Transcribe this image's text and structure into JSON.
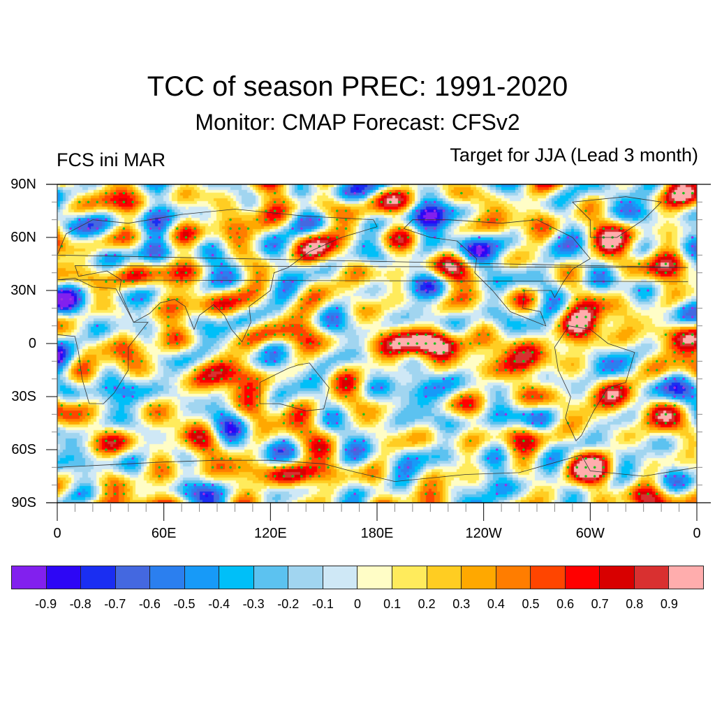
{
  "header": {
    "title": "TCC of season PREC: 1991-2020",
    "subtitle": "Monitor: CMAP   Forecast: CFSv2",
    "left_label": "FCS ini MAR",
    "right_label": "Target for JJA (Lead 3 month)"
  },
  "map": {
    "projection": "cylindrical-equidistant",
    "variable": "TCC (temporal correlation coefficient) of seasonal precipitation",
    "lat_range": [
      -90,
      90
    ],
    "lon_range": [
      0,
      360
    ],
    "y_axis_labels": [
      "90N",
      "60N",
      "30N",
      "0",
      "30S",
      "60S",
      "90S"
    ],
    "y_axis_values": [
      90,
      60,
      30,
      0,
      -30,
      -60,
      -90
    ],
    "x_axis_labels": [
      "0",
      "60E",
      "120E",
      "180E",
      "120W",
      "60W",
      "0"
    ],
    "x_axis_values": [
      0,
      60,
      120,
      180,
      240,
      300,
      360
    ],
    "significance_markers": {
      "positive_color": "#1fbf1f",
      "negative_color": "#9b30e0"
    },
    "notable_features": [
      {
        "name": "equatorial-central-pacific-high-tcc",
        "lat_range": [
          -10,
          8
        ],
        "lon_range": [
          150,
          280
        ],
        "tcc": 0.7
      },
      {
        "name": "antarctic-coast-high-tcc",
        "lat_range": [
          -80,
          -65
        ],
        "lon_range": [
          115,
          155
        ],
        "tcc": 0.6
      },
      {
        "name": "caribbean-northern-south-america-high-tcc",
        "lat_range": [
          -5,
          20
        ],
        "lon_range": [
          280,
          310
        ],
        "tcc": 0.6
      },
      {
        "name": "maritime-continent-negative-tcc",
        "lat_range": [
          -5,
          5
        ],
        "lon_range": [
          110,
          130
        ],
        "tcc": -0.3
      }
    ]
  },
  "colorbar": {
    "labels": [
      "-0.9",
      "-0.8",
      "-0.7",
      "-0.6",
      "-0.5",
      "-0.4",
      "-0.3",
      "-0.2",
      "-0.1",
      "0",
      "0.1",
      "0.2",
      "0.3",
      "0.4",
      "0.5",
      "0.6",
      "0.7",
      "0.8",
      "0.9"
    ],
    "levels": [
      -0.9,
      -0.8,
      -0.7,
      -0.6,
      -0.5,
      -0.4,
      -0.3,
      -0.2,
      -0.1,
      0,
      0.1,
      0.2,
      0.3,
      0.4,
      0.5,
      0.6,
      0.7,
      0.8,
      0.9
    ],
    "colors": [
      "#8220ee",
      "#2d06f5",
      "#1a2ef2",
      "#4468e0",
      "#2b7fef",
      "#179af8",
      "#00bff8",
      "#5cc2f0",
      "#a1d5f0",
      "#cfe8f6",
      "#fffdc6",
      "#ffeb5c",
      "#ffcd22",
      "#ffa800",
      "#ff7d00",
      "#ff4500",
      "#ff0000",
      "#d80000",
      "#d93030",
      "#ffadad"
    ]
  }
}
